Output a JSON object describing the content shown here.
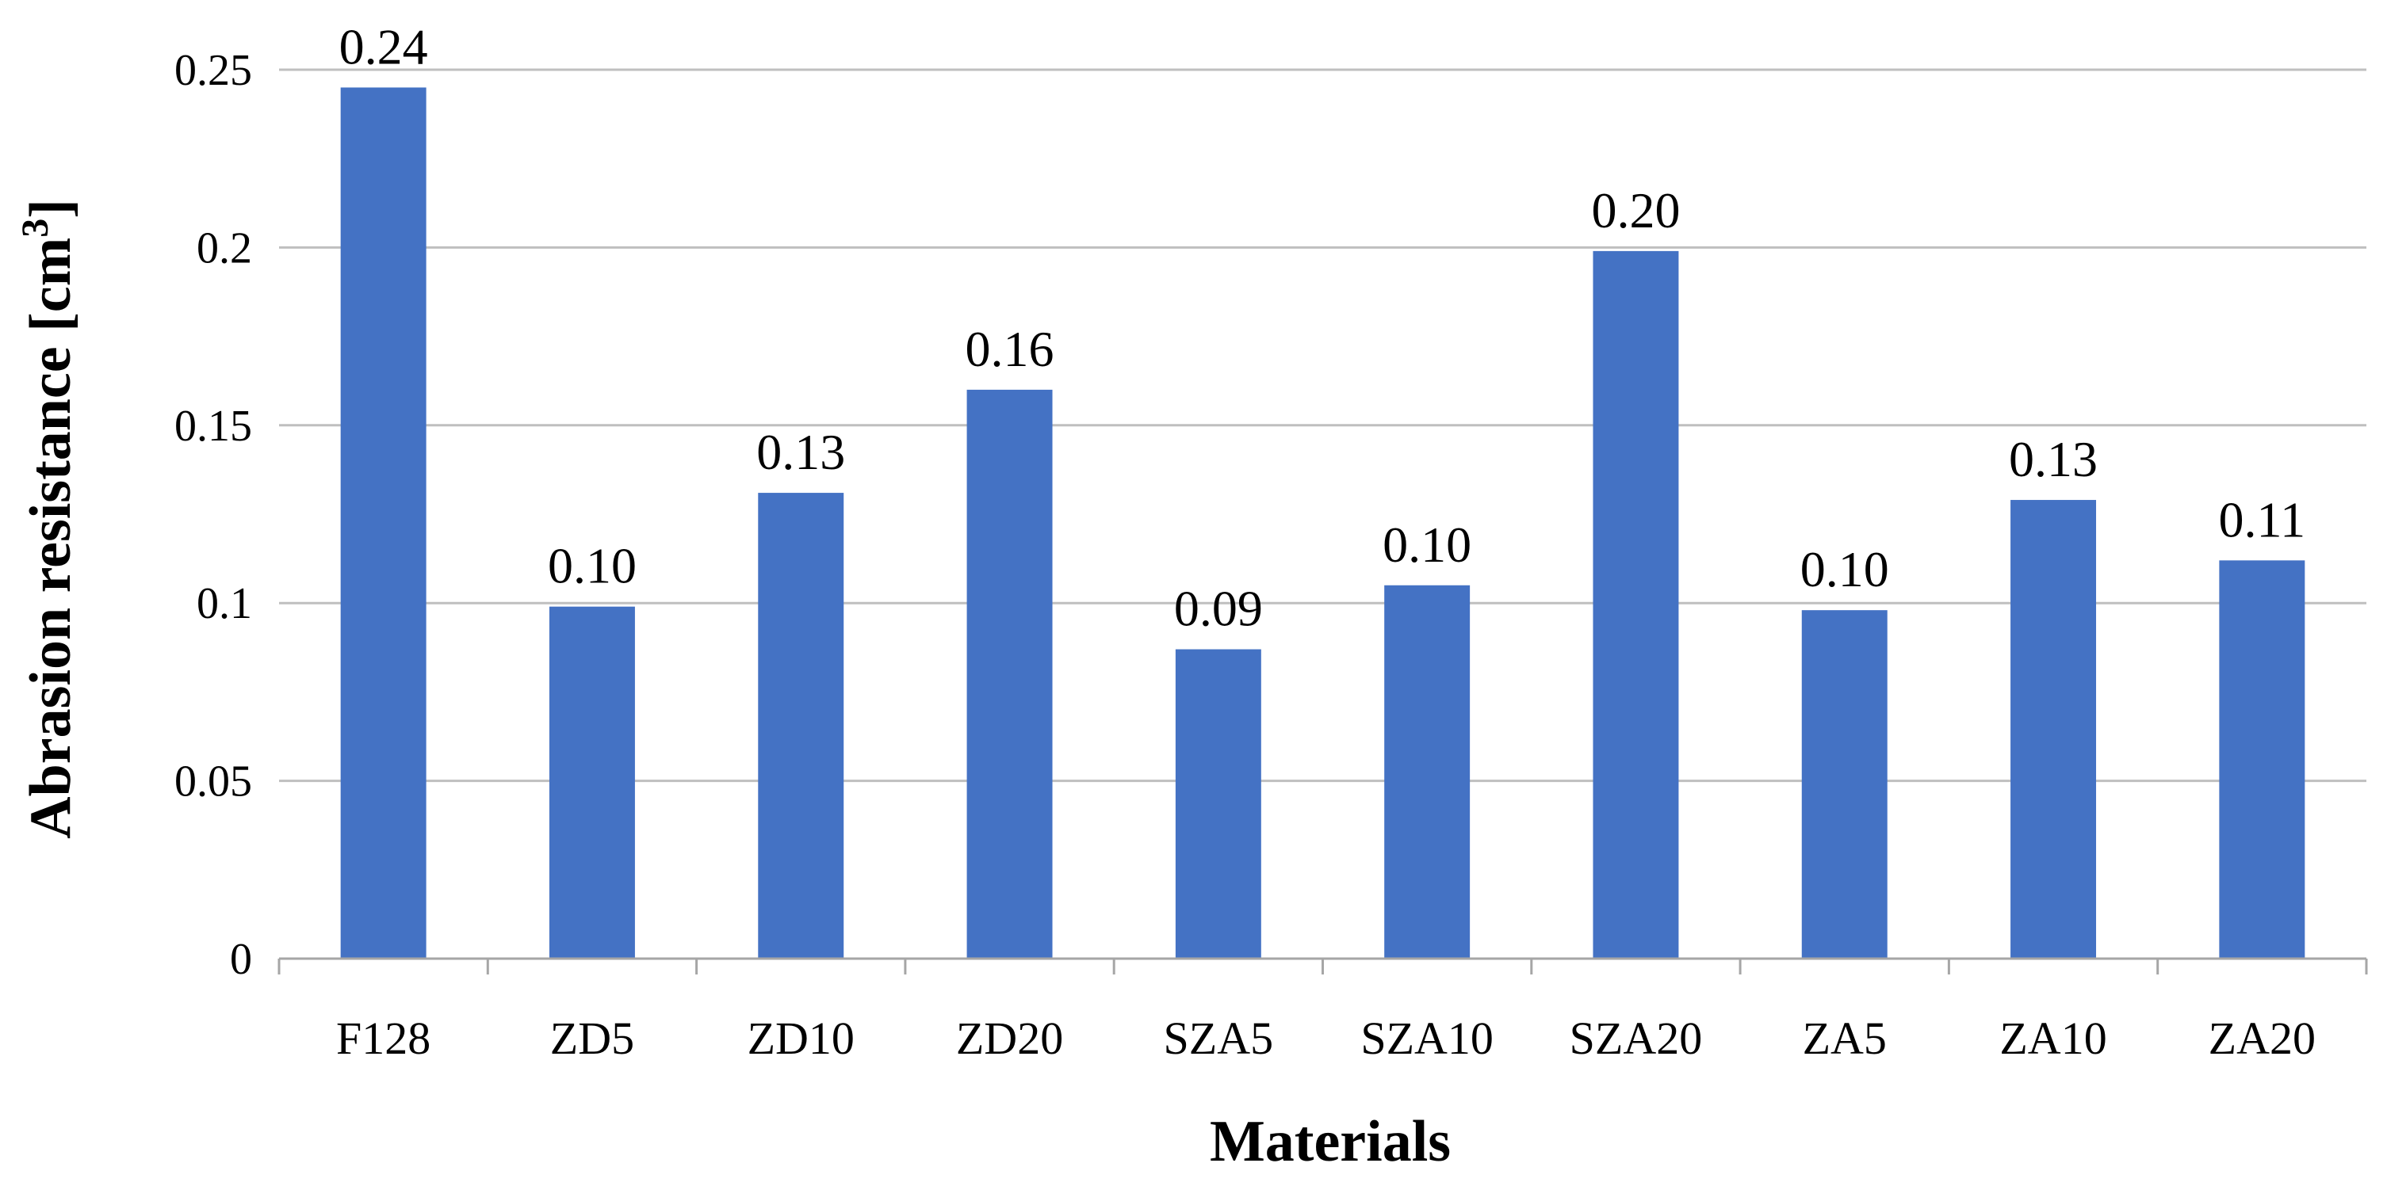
{
  "chart_data": {
    "type": "bar",
    "title": "",
    "xlabel": "Materials",
    "ylabel": "Abrasion resistance [cm",
    "ylabel_superscript": "3",
    "ylabel_close": "]",
    "categories": [
      "F128",
      "ZD5",
      "ZD10",
      "ZD20",
      "SZA5",
      "SZA10",
      "SZA20",
      "ZA5",
      "ZA10",
      "ZA20"
    ],
    "values": [
      0.245,
      0.099,
      0.131,
      0.16,
      0.087,
      0.105,
      0.199,
      0.098,
      0.129,
      0.112
    ],
    "data_labels": [
      "0.24",
      "0.10",
      "0.13",
      "0.16",
      "0.09",
      "0.10",
      "0.20",
      "0.10",
      "0.13",
      "0.11"
    ],
    "ylim": [
      0,
      0.25
    ],
    "yticks": [
      0,
      0.05,
      0.1,
      0.15,
      0.2,
      0.25
    ],
    "ytick_labels": [
      "0",
      "0.05",
      "0.1",
      "0.15",
      "0.2",
      "0.25"
    ],
    "grid": true,
    "legend": "none",
    "bar_color": "#4472C4",
    "grid_color": "#BFBFBF",
    "axis_color": "#A6A6A6",
    "text_color": "#000000"
  }
}
